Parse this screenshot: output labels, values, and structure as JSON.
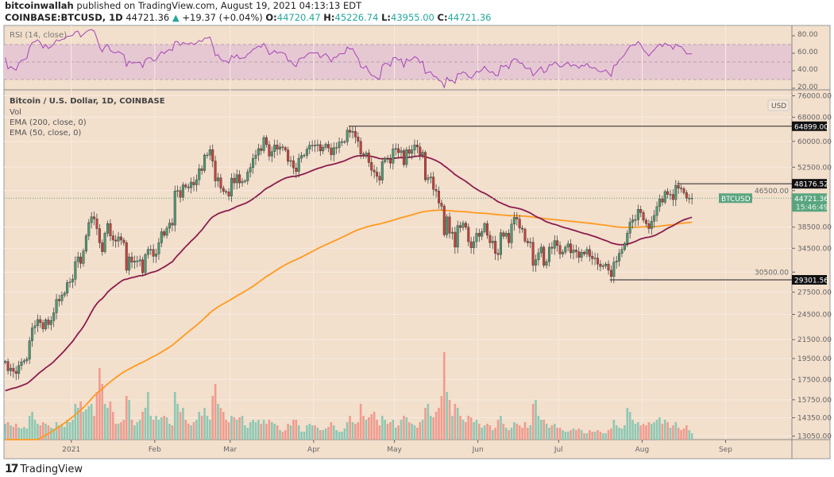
{
  "header": {
    "author": "bitcoinwallah",
    "published": "published on TradingView.com, August 19, 2021 04:13:13 EDT",
    "symbol": "COINBASE:BTCUSD, 1D",
    "last": "44721.36",
    "change": "+19.37 (+0.04%)",
    "up_arrow": "▲",
    "o_label": "O:",
    "o": "44720.47",
    "h_label": "H:",
    "h": "45226.74",
    "l_label": "L:",
    "l": "43955.00",
    "c_label": "C:",
    "c": "44721.36"
  },
  "legend": {
    "title": "Bitcoin / U.S. Dollar, 1D, COINBASE",
    "vol": "Vol",
    "ema200": "EMA (200, close, 0)",
    "ema50": "EMA (50, close, 0)",
    "rsi": "RSI (14, close)"
  },
  "footer": {
    "brand": "TradingView",
    "logo_icon": "tradingview-logo"
  },
  "colors": {
    "background": "#f2dfcc",
    "up": "#4e9a72",
    "down": "#c5413a",
    "vol_up": "#8ec8b4",
    "vol_down": "#ef9c8f",
    "ema200": "#ff9a1f",
    "ema50": "#8c1d4e",
    "rsi": "#a445b8",
    "rsi_band": "#e6c8d2",
    "current_price": "#5aa57f",
    "level": "#111111"
  },
  "chart_data": [
    {
      "type": "candlestick",
      "scale": "log",
      "grid": true,
      "x": {
        "start": "2020-12-07",
        "end": "2021-08-19",
        "interval": "1D"
      },
      "x_ticks": [
        {
          "label": "2021",
          "date": "2021-01-01"
        },
        {
          "label": "Feb",
          "date": "2021-02-01"
        },
        {
          "label": "Mar",
          "date": "2021-03-01"
        },
        {
          "label": "Apr",
          "date": "2021-04-01"
        },
        {
          "label": "May",
          "date": "2021-05-01"
        },
        {
          "label": "Jun",
          "date": "2021-06-01"
        },
        {
          "label": "Jul",
          "date": "2021-07-01"
        },
        {
          "label": "Aug",
          "date": "2021-08-01"
        },
        {
          "label": "Sep",
          "date": "2021-09-01"
        }
      ],
      "y_ticks": [
        "13050.00",
        "14350.00",
        "15750.00",
        "17500.00",
        "19500.00",
        "21500.00",
        "24500.00",
        "27500.00",
        "30500.00",
        "34500.00",
        "38500.00",
        "46500.00",
        "52500.00",
        "60000.00",
        "68000.00",
        "76000.00"
      ],
      "y_unit": "USD",
      "close": [
        19200,
        18300,
        18550,
        18250,
        18040,
        18800,
        19170,
        19270,
        19440,
        21380,
        22850,
        23110,
        23860,
        23480,
        22740,
        23820,
        23240,
        23730,
        24710,
        26490,
        26280,
        27080,
        27360,
        28890,
        28980,
        29400,
        32200,
        33000,
        31900,
        34000,
        36800,
        39400,
        40600,
        40200,
        38200,
        35500,
        33900,
        37300,
        39200,
        36800,
        36000,
        35800,
        36600,
        36000,
        35500,
        30800,
        33000,
        32100,
        32300,
        32300,
        32500,
        30400,
        33400,
        34300,
        34300,
        33100,
        33500,
        35500,
        37600,
        36900,
        38300,
        39300,
        38900,
        46400,
        46500,
        44900,
        47900,
        47400,
        47200,
        48600,
        47900,
        49200,
        52100,
        51600,
        55900,
        55900,
        57500,
        54200,
        48900,
        49700,
        47100,
        46300,
        46200,
        45200,
        49600,
        48400,
        50500,
        48400,
        48800,
        48900,
        51200,
        52400,
        54900,
        55900,
        57800,
        57200,
        61200,
        59000,
        55600,
        56900,
        58900,
        57600,
        58300,
        58100,
        57400,
        54100,
        54300,
        52300,
        51300,
        55000,
        55800,
        55800,
        57600,
        58800,
        58800,
        58700,
        59000,
        57100,
        58200,
        59100,
        58000,
        56000,
        58100,
        58100,
        59800,
        59900,
        59900,
        63600,
        62900,
        63200,
        61400,
        60000,
        56200,
        55700,
        56500,
        53800,
        51700,
        51200,
        50100,
        49100,
        54000,
        55000,
        54800,
        53600,
        57700,
        57800,
        56600,
        57200,
        53200,
        57500,
        56400,
        57400,
        58900,
        58300,
        55900,
        56700,
        49200,
        49700,
        49900,
        46800,
        46400,
        43600,
        42900,
        37000,
        40600,
        37300,
        37500,
        34700,
        38800,
        38400,
        39300,
        38500,
        35700,
        34600,
        35700,
        37300,
        36700,
        37600,
        39200,
        36900,
        35500,
        35800,
        33600,
        33400,
        37400,
        36700,
        37300,
        35500,
        39100,
        40500,
        40100,
        38300,
        38100,
        35800,
        35500,
        35600,
        31600,
        32500,
        33700,
        34700,
        31600,
        32200,
        34700,
        34500,
        35900,
        35000,
        33500,
        33800,
        34700,
        35300,
        33700,
        34200,
        33900,
        32900,
        33800,
        33500,
        34300,
        33100,
        32700,
        32800,
        31800,
        31400,
        31500,
        31800,
        30800,
        29800,
        32100,
        32300,
        33600,
        34300,
        35400,
        37300,
        39500,
        40000,
        40000,
        42200,
        41500,
        39900,
        39200,
        38200,
        39700,
        40900,
        42800,
        44600,
        43800,
        46300,
        45600,
        45600,
        44400,
        47800,
        47100,
        47000,
        46000,
        44700,
        44700,
        44721.36
      ],
      "volume_k": [
        20,
        22,
        18,
        16,
        20,
        15,
        14,
        16,
        14,
        30,
        35,
        25,
        20,
        18,
        22,
        20,
        18,
        15,
        14,
        22,
        18,
        20,
        16,
        25,
        22,
        25,
        45,
        40,
        48,
        35,
        38,
        42,
        45,
        30,
        60,
        90,
        70,
        45,
        40,
        48,
        35,
        20,
        20,
        22,
        25,
        55,
        50,
        25,
        18,
        22,
        25,
        35,
        40,
        60,
        30,
        25,
        30,
        25,
        28,
        30,
        28,
        20,
        18,
        60,
        45,
        35,
        40,
        25,
        20,
        18,
        22,
        25,
        35,
        30,
        40,
        30,
        25,
        55,
        70,
        45,
        40,
        35,
        25,
        22,
        30,
        28,
        25,
        28,
        30,
        18,
        15,
        22,
        25,
        22,
        25,
        20,
        25,
        20,
        25,
        22,
        20,
        18,
        12,
        10,
        12,
        20,
        18,
        25,
        25,
        18,
        10,
        10,
        18,
        20,
        18,
        18,
        15,
        12,
        12,
        14,
        16,
        22,
        18,
        12,
        10,
        10,
        14,
        22,
        30,
        22,
        20,
        22,
        45,
        30,
        25,
        28,
        32,
        35,
        25,
        18,
        30,
        25,
        20,
        22,
        25,
        15,
        18,
        25,
        30,
        28,
        22,
        20,
        18,
        15,
        22,
        25,
        40,
        45,
        30,
        28,
        35,
        40,
        55,
        110,
        60,
        50,
        30,
        45,
        40,
        30,
        25,
        22,
        30,
        28,
        22,
        25,
        20,
        15,
        18,
        20,
        18,
        12,
        15,
        25,
        30,
        20,
        15,
        12,
        15,
        22,
        20,
        18,
        15,
        22,
        15,
        18,
        45,
        50,
        30,
        25,
        25,
        20,
        15,
        18,
        20,
        15,
        15,
        12,
        10,
        10,
        12,
        14,
        12,
        14,
        12,
        8,
        8,
        12,
        10,
        10,
        12,
        10,
        8,
        8,
        12,
        14,
        25,
        18,
        15,
        14,
        18,
        40,
        35,
        25,
        20,
        22,
        18,
        20,
        18,
        22,
        20,
        22,
        25,
        28,
        20,
        25,
        22,
        15,
        18,
        22,
        15,
        12,
        14,
        18,
        12,
        8
      ],
      "ema200_start": 11800,
      "ema50_start": 16400,
      "levels": [
        {
          "value": 64899.0,
          "label": "64899.00",
          "from": "2021-04-14"
        },
        {
          "value": 48176.52,
          "label": "48176.52",
          "from": "2021-08-14"
        },
        {
          "value": 29301.56,
          "label": "29301.56",
          "from": "2021-07-20"
        }
      ],
      "current": {
        "symbol": "BTCUSD",
        "price": "44721.36",
        "countdown": "15:46:49"
      }
    },
    {
      "type": "line",
      "title": "RSI (14, close)",
      "ylim": [
        20,
        85
      ],
      "band": [
        30,
        70
      ],
      "y_ticks": [
        "80.00",
        "60.00",
        "40.00",
        "20.00"
      ]
    }
  ]
}
